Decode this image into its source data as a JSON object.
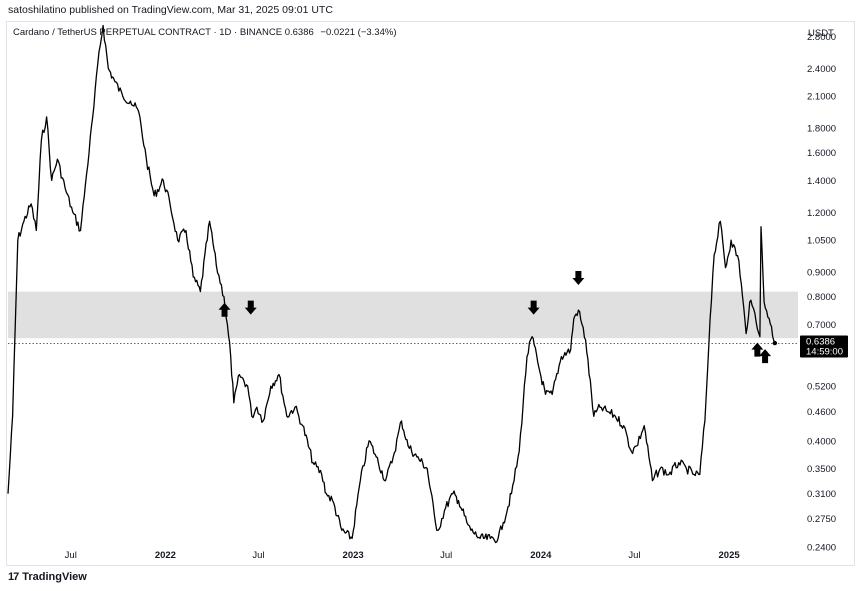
{
  "header": {
    "published": "satoshilatino published on TradingView.com, Mar 31, 2025 09:01 UTC"
  },
  "legend": {
    "symbol": "Cardano / TetherUS PERPETUAL CONTRACT · 1D · BINANCE",
    "price": "0.6386",
    "change": "−0.0221 (−3.34%)"
  },
  "axis_unit": "USDT",
  "price_label": {
    "price": "0.6386",
    "countdown": "14:59:00"
  },
  "footer": {
    "brand": "TradingView"
  },
  "colors": {
    "line": "#000000",
    "zone": "#e0e0e0",
    "arrow": "#000000",
    "label_bg": "#000000"
  },
  "chart_data": {
    "type": "line",
    "title": "Cardano / TetherUS PERPETUAL CONTRACT · 1D · BINANCE",
    "scale": "log",
    "ylim": [
      0.22,
      3.0
    ],
    "xlim": [
      "2021-03-01",
      "2025-05-15"
    ],
    "y_ticks": [
      "2.8000",
      "2.4000",
      "2.1000",
      "1.8000",
      "1.6000",
      "1.4000",
      "1.2000",
      "1.0500",
      "0.9000",
      "0.8000",
      "0.7000",
      "0.5200",
      "0.4600",
      "0.4000",
      "0.3500",
      "0.3100",
      "0.2750",
      "0.2400"
    ],
    "x_ticks": [
      {
        "date": "2021-07-01",
        "label": "Jul",
        "bold": false
      },
      {
        "date": "2022-01-01",
        "label": "2022",
        "bold": true
      },
      {
        "date": "2022-07-01",
        "label": "Jul",
        "bold": false
      },
      {
        "date": "2023-01-01",
        "label": "2023",
        "bold": true
      },
      {
        "date": "2023-07-01",
        "label": "Jul",
        "bold": false
      },
      {
        "date": "2024-01-01",
        "label": "2024",
        "bold": true
      },
      {
        "date": "2024-07-01",
        "label": "Jul",
        "bold": false
      },
      {
        "date": "2025-01-01",
        "label": "2025",
        "bold": true
      }
    ],
    "series": [
      {
        "x": [
          "2021-03-01",
          "2021-03-10",
          "2021-03-20",
          "2021-04-01",
          "2021-04-15",
          "2021-04-25",
          "2021-05-05",
          "2021-05-15",
          "2021-05-25",
          "2021-06-05",
          "2021-06-20",
          "2021-07-05",
          "2021-07-20",
          "2021-08-01",
          "2021-08-15",
          "2021-08-25",
          "2021-09-02",
          "2021-09-12",
          "2021-09-25",
          "2021-10-10",
          "2021-10-25",
          "2021-11-10",
          "2021-11-25",
          "2021-12-10",
          "2021-12-28",
          "2022-01-10",
          "2022-01-25",
          "2022-02-10",
          "2022-02-24",
          "2022-03-10",
          "2022-03-28",
          "2022-04-10",
          "2022-04-25",
          "2022-05-08",
          "2022-05-14",
          "2022-05-25",
          "2022-06-10",
          "2022-06-18",
          "2022-06-28",
          "2022-07-10",
          "2022-07-25",
          "2022-08-10",
          "2022-08-25",
          "2022-09-10",
          "2022-09-25",
          "2022-10-15",
          "2022-11-01",
          "2022-11-10",
          "2022-11-22",
          "2022-12-10",
          "2022-12-30",
          "2023-01-15",
          "2023-02-01",
          "2023-02-15",
          "2023-03-05",
          "2023-03-20",
          "2023-04-05",
          "2023-04-18",
          "2023-05-05",
          "2023-05-25",
          "2023-06-10",
          "2023-06-15",
          "2023-06-30",
          "2023-07-14",
          "2023-07-25",
          "2023-08-10",
          "2023-08-18",
          "2023-09-05",
          "2023-09-25",
          "2023-10-10",
          "2023-10-20",
          "2023-11-05",
          "2023-11-20",
          "2023-12-05",
          "2023-12-15",
          "2023-12-28",
          "2024-01-10",
          "2024-01-23",
          "2024-02-10",
          "2024-02-28",
          "2024-03-05",
          "2024-03-14",
          "2024-03-28",
          "2024-04-13",
          "2024-04-25",
          "2024-05-10",
          "2024-05-25",
          "2024-06-10",
          "2024-06-25",
          "2024-07-05",
          "2024-07-20",
          "2024-08-05",
          "2024-08-20",
          "2024-09-06",
          "2024-09-25",
          "2024-10-10",
          "2024-10-25",
          "2024-11-05",
          "2024-11-15",
          "2024-11-25",
          "2024-12-03",
          "2024-12-15",
          "2024-12-25",
          "2025-01-05",
          "2025-01-20",
          "2025-02-03",
          "2025-02-10",
          "2025-02-20",
          "2025-03-02",
          "2025-03-04",
          "2025-03-10",
          "2025-03-20",
          "2025-03-31"
        ],
        "y": [
          0.31,
          0.45,
          1.05,
          1.15,
          1.25,
          1.1,
          1.7,
          1.9,
          1.4,
          1.55,
          1.35,
          1.2,
          1.1,
          1.45,
          2.0,
          2.6,
          2.95,
          2.4,
          2.25,
          2.1,
          2.05,
          1.95,
          1.55,
          1.3,
          1.4,
          1.25,
          1.05,
          1.1,
          0.88,
          0.82,
          1.15,
          0.93,
          0.8,
          0.6,
          0.48,
          0.55,
          0.52,
          0.45,
          0.47,
          0.44,
          0.52,
          0.55,
          0.45,
          0.47,
          0.43,
          0.36,
          0.34,
          0.31,
          0.3,
          0.26,
          0.25,
          0.33,
          0.4,
          0.37,
          0.33,
          0.37,
          0.44,
          0.39,
          0.37,
          0.35,
          0.27,
          0.26,
          0.29,
          0.31,
          0.3,
          0.27,
          0.26,
          0.25,
          0.25,
          0.25,
          0.27,
          0.31,
          0.38,
          0.6,
          0.66,
          0.57,
          0.5,
          0.5,
          0.6,
          0.62,
          0.72,
          0.75,
          0.65,
          0.45,
          0.47,
          0.46,
          0.45,
          0.43,
          0.38,
          0.39,
          0.43,
          0.33,
          0.35,
          0.34,
          0.36,
          0.35,
          0.34,
          0.34,
          0.44,
          0.72,
          0.98,
          1.15,
          0.92,
          1.05,
          0.95,
          0.67,
          0.78,
          0.74,
          0.66,
          1.12,
          0.78,
          0.72,
          0.64
        ]
      }
    ],
    "support_zone": [
      0.655,
      0.82
    ],
    "current_price_line": 0.6386,
    "annotations": [
      {
        "date": "2022-04-26",
        "value": 0.8,
        "type": "arrow-up"
      },
      {
        "date": "2022-06-16",
        "value": 0.72,
        "type": "arrow-down"
      },
      {
        "date": "2023-12-18",
        "value": 0.72,
        "type": "arrow-down"
      },
      {
        "date": "2024-03-14",
        "value": 0.83,
        "type": "arrow-down"
      },
      {
        "date": "2025-02-25",
        "value": 0.66,
        "type": "arrow-up"
      },
      {
        "date": "2025-03-12",
        "value": 0.64,
        "type": "arrow-up"
      }
    ]
  }
}
